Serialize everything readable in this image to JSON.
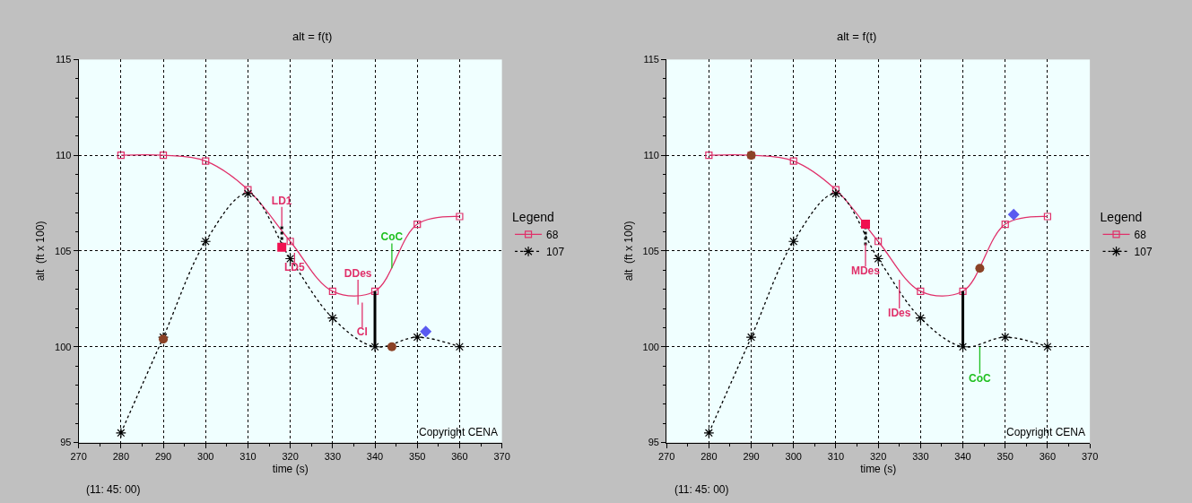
{
  "chart_data": [
    {
      "type": "line",
      "title": "alt = f(t)",
      "xlabel": "time (s)",
      "ylabel": "alt  (ft x 100)",
      "legend_title": "Legend",
      "legend": "right",
      "grid": true,
      "xlim": [
        270,
        370
      ],
      "xticks": [
        270,
        {
          "value": 275,
          "label": null
        },
        280,
        {
          "value": 285,
          "label": null
        },
        290,
        {
          "value": 295,
          "label": null
        },
        300,
        {
          "value": 305,
          "label": null
        },
        310,
        {
          "value": 315,
          "label": null
        },
        320,
        {
          "value": 325,
          "label": null
        },
        330,
        {
          "value": 335,
          "label": null
        },
        340,
        {
          "value": 345,
          "label": null
        },
        350,
        {
          "value": 355,
          "label": null
        },
        360,
        {
          "value": 365,
          "label": null
        },
        370
      ],
      "ylim": [
        95,
        115
      ],
      "yticks": [
        95,
        {
          "value": 96,
          "label": null
        },
        {
          "value": 97,
          "label": null
        },
        {
          "value": 98,
          "label": null
        },
        {
          "value": 99,
          "label": null
        },
        100,
        {
          "value": 101,
          "label": null
        },
        {
          "value": 102,
          "label": null
        },
        {
          "value": 103,
          "label": null
        },
        {
          "value": 104,
          "label": null
        },
        105,
        {
          "value": 106,
          "label": null
        },
        {
          "value": 107,
          "label": null
        },
        {
          "value": 108,
          "label": null
        },
        {
          "value": 109,
          "label": null
        },
        110,
        {
          "value": 111,
          "label": null
        },
        {
          "value": 112,
          "label": null
        },
        {
          "value": 113,
          "label": null
        },
        {
          "value": 114,
          "label": null
        },
        115
      ],
      "annotations": [
        "(11: 45: 00)",
        "Copyright CENA"
      ],
      "series": [
        {
          "name": "68",
          "color": "#e0306a",
          "marker": "square",
          "line_style": "solid",
          "x": [
            280,
            290,
            300,
            310,
            320,
            330,
            340,
            350,
            360
          ],
          "values": [
            110,
            110,
            109.7,
            108.2,
            105.5,
            102.9,
            102.9,
            106.4,
            106.8
          ]
        },
        {
          "name": "107",
          "color": "#000000",
          "marker": "cross",
          "line_style": "dotted",
          "x": [
            280,
            290,
            300,
            310,
            320,
            330,
            340,
            350,
            360
          ],
          "values": [
            95.5,
            100.5,
            105.5,
            108,
            104.6,
            101.5,
            100,
            100.5,
            100
          ]
        },
        {
          "color": "#000000",
          "line_style": "dotted",
          "x": [
            318,
            318
          ],
          "values": [
            105.3,
            106.3
          ]
        },
        {
          "color": "#000000",
          "line_style": "solid",
          "x": [
            340,
            340
          ],
          "values": [
            100,
            102.9
          ]
        },
        {
          "name": "LD1",
          "color": "#e0306a",
          "line_style": "solid",
          "x": [
            318,
            318
          ],
          "values": [
            106.3,
            107.3
          ]
        },
        {
          "name": "LD5",
          "color": "#e0306a",
          "line_style": "solid",
          "x": [
            321,
            321
          ],
          "values": [
            104.9,
            104.4
          ]
        },
        {
          "name": "DDes",
          "color": "#e0306a",
          "line_style": "solid",
          "x": [
            336,
            336
          ],
          "values": [
            102.2,
            103.5
          ]
        },
        {
          "name": "CI",
          "color": "#e0306a",
          "line_style": "solid",
          "x": [
            337,
            337
          ],
          "values": [
            102.3,
            101
          ]
        },
        {
          "name": "CoC",
          "color": "#20c020",
          "line_style": "solid",
          "x": [
            344,
            344
          ],
          "values": [
            104.1,
            105.4
          ]
        },
        {
          "type": "scatter",
          "color": "#8b4226",
          "marker": "circle",
          "x": [
            290,
            344
          ],
          "values": [
            100.4,
            100
          ]
        },
        {
          "type": "scatter",
          "color": "#5a5af0",
          "marker": "diamond",
          "x": [
            352
          ],
          "values": [
            100.8
          ]
        },
        {
          "type": "scatter",
          "color": "#f01050",
          "marker": "square",
          "x": [
            318
          ],
          "values": [
            105.2
          ]
        }
      ]
    },
    {
      "type": "line",
      "title": "alt = f(t)",
      "xlabel": "time (s)",
      "ylabel": "alt  (ft x 100)",
      "legend_title": "Legend",
      "legend": "right",
      "grid": true,
      "xlim": [
        270,
        370
      ],
      "xticks": [
        270,
        {
          "value": 275,
          "label": null
        },
        280,
        {
          "value": 285,
          "label": null
        },
        290,
        {
          "value": 295,
          "label": null
        },
        300,
        {
          "value": 305,
          "label": null
        },
        310,
        {
          "value": 315,
          "label": null
        },
        320,
        {
          "value": 325,
          "label": null
        },
        330,
        {
          "value": 335,
          "label": null
        },
        340,
        {
          "value": 345,
          "label": null
        },
        350,
        {
          "value": 355,
          "label": null
        },
        360,
        {
          "value": 365,
          "label": null
        },
        370
      ],
      "ylim": [
        95,
        115
      ],
      "yticks": [
        95,
        {
          "value": 96,
          "label": null
        },
        {
          "value": 97,
          "label": null
        },
        {
          "value": 98,
          "label": null
        },
        {
          "value": 99,
          "label": null
        },
        100,
        {
          "value": 101,
          "label": null
        },
        {
          "value": 102,
          "label": null
        },
        {
          "value": 103,
          "label": null
        },
        {
          "value": 104,
          "label": null
        },
        105,
        {
          "value": 106,
          "label": null
        },
        {
          "value": 107,
          "label": null
        },
        {
          "value": 108,
          "label": null
        },
        {
          "value": 109,
          "label": null
        },
        110,
        {
          "value": 111,
          "label": null
        },
        {
          "value": 112,
          "label": null
        },
        {
          "value": 113,
          "label": null
        },
        {
          "value": 114,
          "label": null
        },
        115
      ],
      "annotations": [
        "(11: 45: 00)",
        "Copyright CENA"
      ],
      "series": [
        {
          "name": "68",
          "color": "#e0306a",
          "marker": "square",
          "line_style": "solid",
          "x": [
            280,
            290,
            300,
            310,
            320,
            330,
            340,
            350,
            360
          ],
          "values": [
            110,
            110,
            109.7,
            108.2,
            105.5,
            102.9,
            102.9,
            106.4,
            106.8
          ]
        },
        {
          "name": "107",
          "color": "#000000",
          "marker": "cross",
          "line_style": "dotted",
          "x": [
            280,
            290,
            300,
            310,
            320,
            330,
            340,
            350,
            360
          ],
          "values": [
            95.5,
            100.5,
            105.5,
            108,
            104.6,
            101.5,
            100,
            100.5,
            100
          ]
        },
        {
          "color": "#000000",
          "line_style": "dotted",
          "x": [
            317,
            317
          ],
          "values": [
            105.3,
            106.2
          ]
        },
        {
          "color": "#000000",
          "line_style": "solid",
          "x": [
            340,
            340
          ],
          "values": [
            100,
            102.9
          ]
        },
        {
          "name": "MDes",
          "color": "#e0306a",
          "line_style": "solid",
          "x": [
            317,
            317
          ],
          "values": [
            105.4,
            104.2
          ]
        },
        {
          "name": "IDes",
          "color": "#e0306a",
          "line_style": "solid",
          "x": [
            325,
            325
          ],
          "values": [
            103.5,
            102
          ]
        },
        {
          "name": "CoC",
          "color": "#20c020",
          "line_style": "solid",
          "x": [
            344,
            344
          ],
          "values": [
            100,
            98.6
          ]
        },
        {
          "type": "scatter",
          "color": "#8b4226",
          "marker": "circle",
          "x": [
            290,
            344
          ],
          "values": [
            110,
            104.1
          ]
        },
        {
          "type": "scatter",
          "color": "#5a5af0",
          "marker": "diamond",
          "x": [
            352
          ],
          "values": [
            106.9
          ]
        },
        {
          "type": "scatter",
          "color": "#f01050",
          "marker": "square",
          "x": [
            317
          ],
          "values": [
            106.4
          ]
        }
      ]
    }
  ]
}
